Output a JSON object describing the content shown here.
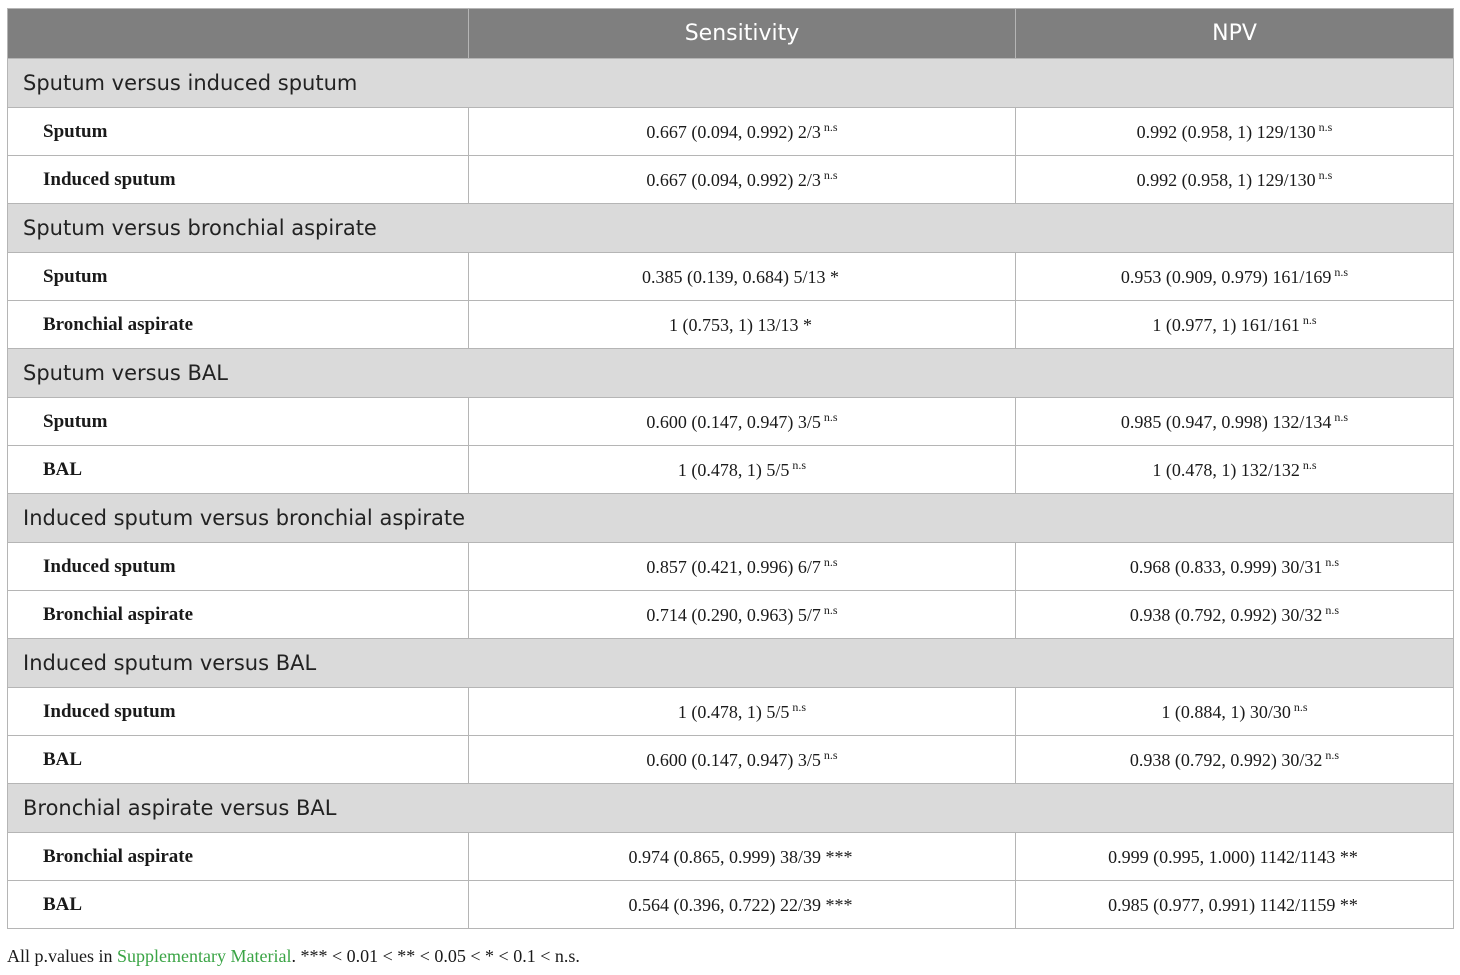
{
  "header": {
    "col1": "",
    "col2": "Sensitivity",
    "col3": "NPV"
  },
  "groups": [
    {
      "title": "Sputum versus induced sputum",
      "rows": [
        {
          "label": "Sputum",
          "sens": "0.667 (0.094, 0.992) 2/3",
          "sens_sig": "n.s",
          "npv": "0.992 (0.958, 1) 129/130",
          "npv_sig": "n.s"
        },
        {
          "label": "Induced sputum",
          "sens": "0.667 (0.094, 0.992) 2/3",
          "sens_sig": "n.s",
          "npv": "0.992 (0.958, 1) 129/130",
          "npv_sig": "n.s"
        }
      ]
    },
    {
      "title": "Sputum versus bronchial aspirate",
      "rows": [
        {
          "label": "Sputum",
          "sens": "0.385 (0.139, 0.684) 5/13 *",
          "sens_sig": "",
          "npv": "0.953 (0.909, 0.979) 161/169",
          "npv_sig": "n.s"
        },
        {
          "label": "Bronchial aspirate",
          "sens": "1 (0.753, 1) 13/13 *",
          "sens_sig": "",
          "npv": "1 (0.977, 1) 161/161",
          "npv_sig": "n.s"
        }
      ]
    },
    {
      "title": "Sputum versus BAL",
      "rows": [
        {
          "label": "Sputum",
          "sens": "0.600 (0.147, 0.947) 3/5",
          "sens_sig": "n.s",
          "npv": "0.985 (0.947, 0.998) 132/134",
          "npv_sig": "n.s"
        },
        {
          "label": "BAL",
          "sens": "1 (0.478, 1) 5/5",
          "sens_sig": "n.s",
          "npv": "1 (0.478, 1) 132/132",
          "npv_sig": "n.s"
        }
      ]
    },
    {
      "title": "Induced sputum versus bronchial aspirate",
      "rows": [
        {
          "label": "Induced sputum",
          "sens": "0.857 (0.421, 0.996) 6/7",
          "sens_sig": "n.s",
          "npv": "0.968 (0.833, 0.999) 30/31",
          "npv_sig": "n.s"
        },
        {
          "label": "Bronchial aspirate",
          "sens": "0.714 (0.290, 0.963) 5/7",
          "sens_sig": "n.s",
          "npv": "0.938 (0.792, 0.992) 30/32",
          "npv_sig": "n.s"
        }
      ]
    },
    {
      "title": "Induced sputum versus BAL",
      "rows": [
        {
          "label": "Induced sputum",
          "sens": "1 (0.478, 1) 5/5",
          "sens_sig": "n.s",
          "npv": "1 (0.884, 1) 30/30",
          "npv_sig": "n.s"
        },
        {
          "label": "BAL",
          "sens": "0.600 (0.147, 0.947) 3/5",
          "sens_sig": "n.s",
          "npv": "0.938 (0.792, 0.992) 30/32",
          "npv_sig": "n.s"
        }
      ]
    },
    {
      "title": "Bronchial aspirate versus BAL",
      "rows": [
        {
          "label": "Bronchial aspirate",
          "sens": "0.974 (0.865, 0.999) 38/39 ***",
          "sens_sig": "",
          "npv": "0.999 (0.995, 1.000) 1142/1143 **",
          "npv_sig": ""
        },
        {
          "label": "BAL",
          "sens": "0.564 (0.396, 0.722) 22/39 ***",
          "sens_sig": "",
          "npv": "0.985 (0.977, 0.991) 1142/1159 **",
          "npv_sig": ""
        }
      ]
    }
  ],
  "footnote": {
    "prefix": "All p.values in ",
    "link": "Supplementary Material",
    "suffix": ". *** < 0.01 < ** < 0.05 < * < 0.1 < n.s."
  }
}
